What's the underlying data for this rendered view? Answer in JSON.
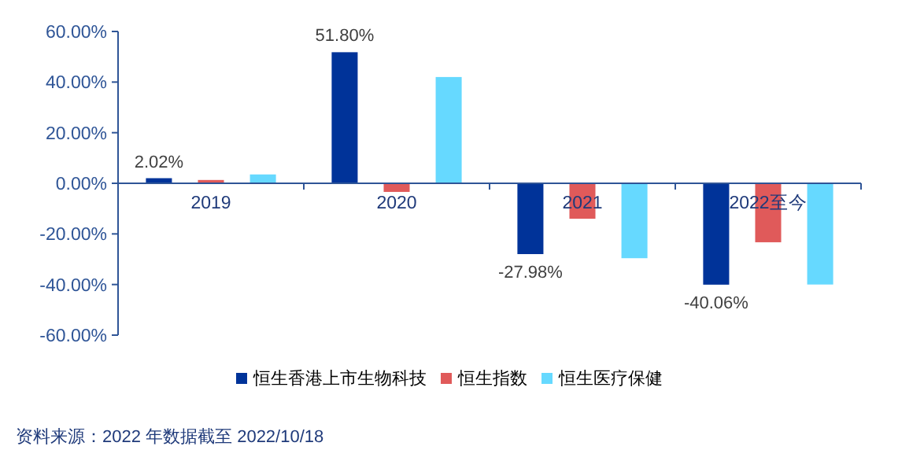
{
  "chart_data": {
    "type": "bar",
    "categories": [
      "2019",
      "2020",
      "2021",
      "2022至今"
    ],
    "series": [
      {
        "name": "恒生香港上市生物科技",
        "color": "#003399",
        "values": [
          2.02,
          51.8,
          -27.98,
          -40.06
        ],
        "value_labels": [
          "2.02%",
          "51.80%",
          "-27.98%",
          "-40.06%"
        ]
      },
      {
        "name": "恒生指数",
        "color": "#e05a5a",
        "values": [
          1.3,
          -3.4,
          -14,
          -23.3
        ]
      },
      {
        "name": "恒生医疗保健",
        "color": "#66d9ff",
        "values": [
          3.5,
          42,
          -29.6,
          -40
        ]
      }
    ],
    "ylim": [
      -60,
      60
    ],
    "yticks": [
      {
        "value": -60,
        "label": "-60.00%"
      },
      {
        "value": -40,
        "label": "-40.00%"
      },
      {
        "value": -20,
        "label": "-20.00%"
      },
      {
        "value": 0,
        "label": "0.00%"
      },
      {
        "value": 20,
        "label": "20.00%"
      },
      {
        "value": 40,
        "label": "40.00%"
      },
      {
        "value": 60,
        "label": "60.00%"
      }
    ],
    "legend": "bottom",
    "annotations": [
      "资料来源：2022 年数据截至 2022/10/18"
    ]
  }
}
